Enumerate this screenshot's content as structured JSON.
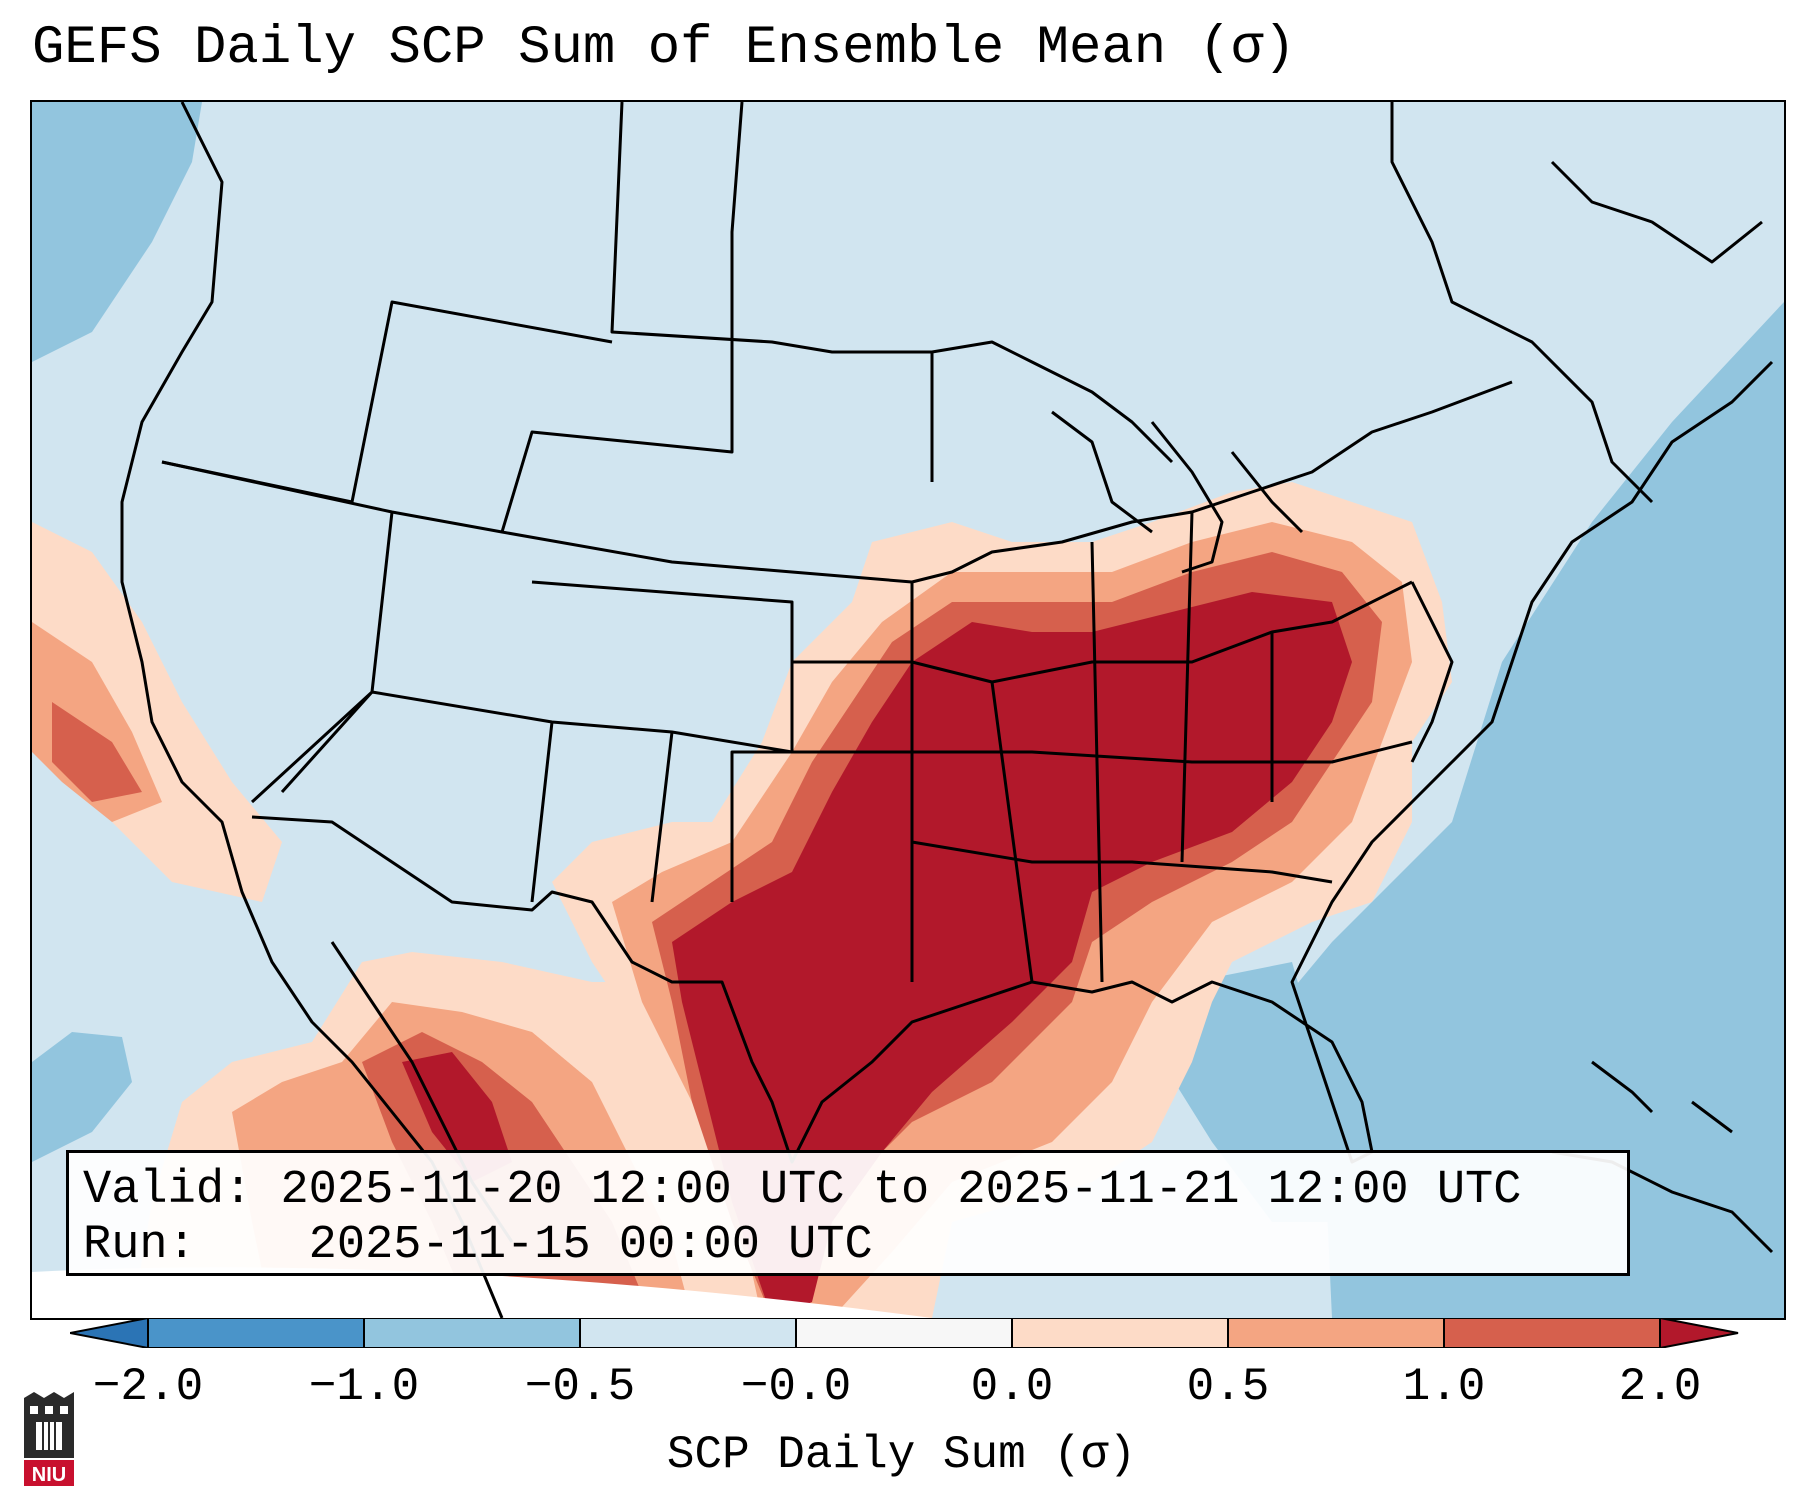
{
  "title": "GEFS Daily SCP Sum of Ensemble Mean (σ)",
  "info": {
    "valid_label": "Valid:",
    "valid_value": "2025-11-20 12:00 UTC to 2025-11-21 12:00 UTC",
    "run_label": "Run:",
    "run_value": "2025-11-15 00:00 UTC"
  },
  "colorbar": {
    "label": "SCP Daily Sum (σ)",
    "ticks": [
      "−2.0",
      "−1.0",
      "−0.5",
      "−0.0",
      "0.0",
      "0.5",
      "1.0",
      "2.0"
    ],
    "bins": [
      {
        "range": "< -2.0",
        "color": "#2b74b5"
      },
      {
        "range": "-2.0 to -1.0",
        "color": "#4a94c9"
      },
      {
        "range": "-1.0 to -0.5",
        "color": "#92c5de"
      },
      {
        "range": "-0.5 to -0.0",
        "color": "#d1e5f0"
      },
      {
        "range": "-0.0 to 0.0",
        "color": "#f7f7f7"
      },
      {
        "range": "0.0 to 0.5",
        "color": "#fddbc7"
      },
      {
        "range": "0.5 to 1.0",
        "color": "#f4a582"
      },
      {
        "range": "1.0 to 2.0",
        "color": "#d6604d"
      },
      {
        "range": "> 2.0",
        "color": "#b2182b"
      }
    ]
  },
  "logo": {
    "text": "NIU",
    "color": "#c8102e"
  }
}
